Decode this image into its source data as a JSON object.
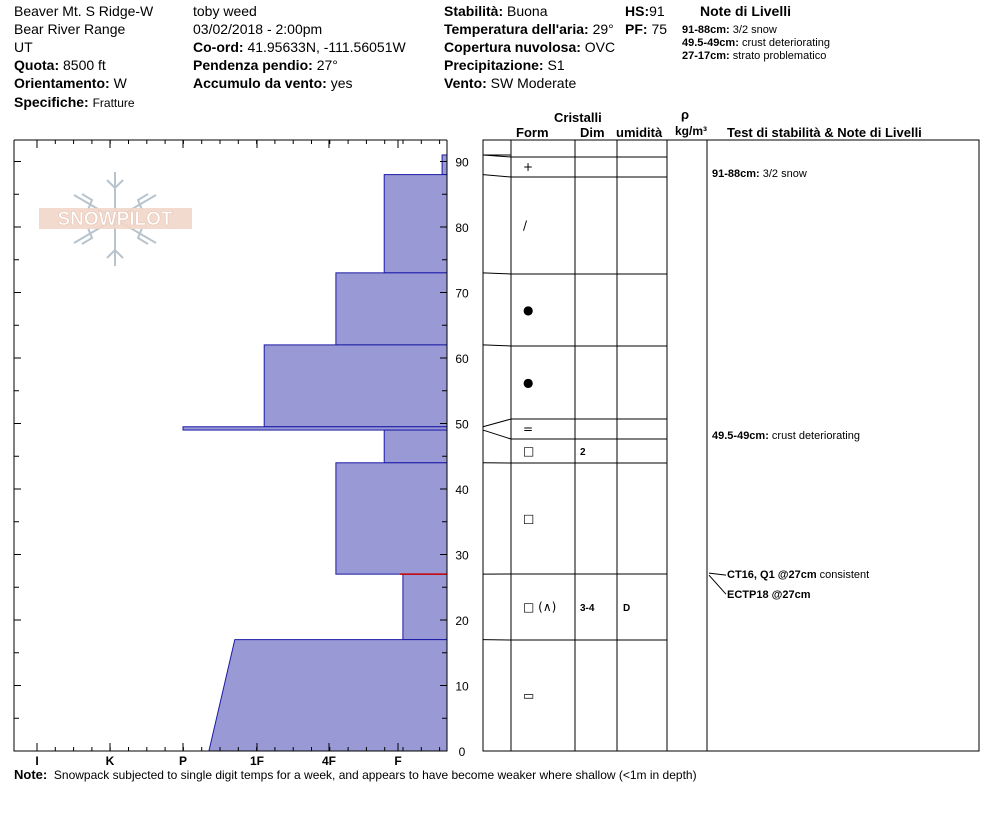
{
  "header": {
    "location": "Beaver Mt. S Ridge-W",
    "range": "Bear River Range",
    "state": "UT",
    "elevation_label": "Quota:",
    "elevation": "8500 ft",
    "aspect_label": "Orientamento:",
    "aspect": "W",
    "specifics_label": "Specifiche:",
    "specifics": "Fratture",
    "observer": "toby weed",
    "datetime": "03/02/2018 - 2:00pm",
    "coords_label": "Co-ord:",
    "coords": "41.95633N, -111.56051W",
    "slope_label": "Pendenza pendio:",
    "slope": "27°",
    "wind_loading_label": "Accumulo da vento:",
    "wind_loading": "yes",
    "stability_label": "Stabilità:",
    "stability": "Buona",
    "air_temp_label": "Temperatura dell'aria:",
    "air_temp": "29°",
    "cloud_label": "Copertura nuvolosa:",
    "cloud": "OVC",
    "precip_label": "Precipitazione:",
    "precip": "S1",
    "wind_label": "Vento:",
    "wind": "SW Moderate",
    "hs_label": "HS:",
    "hs": "91",
    "pf_label": "PF:",
    "pf": "75"
  },
  "layer_notes": {
    "title": "Note di Livelli",
    "items": [
      {
        "range": "91-88cm:",
        "text": "3/2 snow"
      },
      {
        "range": "49.5-49cm:",
        "text": "crust deteriorating"
      },
      {
        "range": "27-17cm:",
        "text": "strato problematico"
      }
    ]
  },
  "columns": {
    "crystals": "Cristalli",
    "form": "Form",
    "dim": "Dim",
    "moisture": "umidità",
    "rho": "ρ",
    "density_unit": "kg/m³",
    "tests_notes": "Test di stabilità & Note di Livelli"
  },
  "logo_text": "SNOWPILOT",
  "footer": {
    "label": "Note:",
    "text": "Snowpack subjected to single digit temps for a week, and appears to have become weaker where shallow (<1m in depth)"
  },
  "chart_data": {
    "type": "bar",
    "y_axis": "height_cm",
    "ylim": [
      0,
      93
    ],
    "y_ticks": [
      0,
      10,
      20,
      30,
      40,
      50,
      60,
      70,
      80,
      90
    ],
    "hardness_scale": [
      "I",
      "K",
      "P",
      "1F",
      "4F",
      "F"
    ],
    "hardness_scale_order_note": "axis runs from I (left) to F (right edge side)",
    "layers": [
      {
        "top": 91,
        "bottom": 88,
        "hardness_index": 5.45,
        "form": "+",
        "dim": "",
        "moisture": ""
      },
      {
        "top": 88,
        "bottom": 73,
        "hardness_index": 4.8,
        "form": "/",
        "dim": "",
        "moisture": ""
      },
      {
        "top": 73,
        "bottom": 62,
        "hardness_index": 4.1,
        "form": "●",
        "dim": "",
        "moisture": ""
      },
      {
        "top": 62,
        "bottom": 49.5,
        "hardness_index": 3.1,
        "form": "●",
        "dim": "",
        "moisture": ""
      },
      {
        "top": 49.5,
        "bottom": 49,
        "hardness_index": 2.0,
        "form": "=",
        "dim": "",
        "moisture": ""
      },
      {
        "top": 49,
        "bottom": 44,
        "hardness_index": 4.8,
        "form": "□",
        "dim": "2",
        "moisture": ""
      },
      {
        "top": 44,
        "bottom": 27,
        "hardness_index": 4.1,
        "form": "□",
        "dim": "",
        "moisture": ""
      },
      {
        "top": 27,
        "bottom": 17,
        "hardness_index": 5.05,
        "form": "□ (∧)",
        "dim": "3-4",
        "moisture": "D"
      },
      {
        "top": 17,
        "bottom": 0,
        "hardness_index": 2.7,
        "hardness_index_bottom": 2.35,
        "form": "▭",
        "dim": "",
        "moisture": ""
      }
    ],
    "weak_layer_cm": 27,
    "layer_notes_chart": [
      {
        "height": 91,
        "range": "91-88cm:",
        "text": "3/2 snow"
      },
      {
        "height": 49.5,
        "range": "49.5-49cm:",
        "text": "crust deteriorating"
      }
    ],
    "tests": [
      {
        "height": 27,
        "label": "CT16, Q1 @27cm",
        "note": "consistent"
      },
      {
        "height": 27,
        "label": "ECTP18 @27cm",
        "note": ""
      }
    ]
  }
}
